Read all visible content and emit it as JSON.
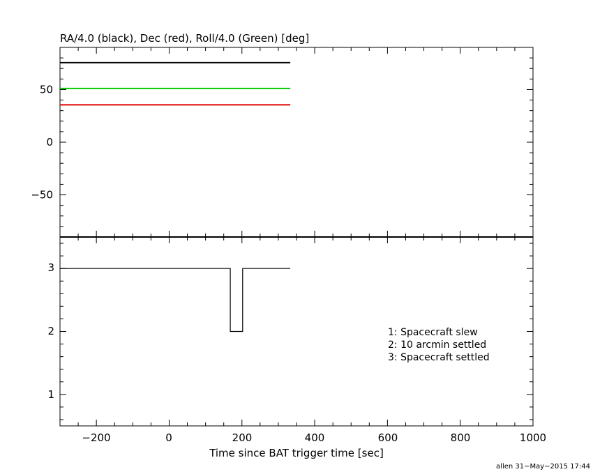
{
  "chart_data": [
    {
      "type": "line",
      "title": "RA/4.0 (black), Dec (red), Roll/4.0 (Green) [deg]",
      "xlim": [
        -300,
        1000
      ],
      "ylim": [
        -90,
        90
      ],
      "yticks": [
        50,
        0,
        -50
      ],
      "series": [
        {
          "color": "#000000",
          "x": [
            -300,
            333
          ],
          "y": [
            75.5,
            75.5
          ]
        },
        {
          "color": "#00cc00",
          "x": [
            -300,
            333
          ],
          "y": [
            51,
            51
          ]
        },
        {
          "color": "#e00000",
          "x": [
            -300,
            333
          ],
          "y": [
            35.5,
            35.5
          ]
        }
      ]
    },
    {
      "type": "line",
      "xlabel": "Time since BAT trigger time [sec]",
      "xlim": [
        -300,
        1000
      ],
      "ylim": [
        0.5,
        3.5
      ],
      "yticks": [
        "3",
        "2",
        "1"
      ],
      "xticks": [
        "−200",
        "0",
        "200",
        "400",
        "600",
        "800",
        "1000"
      ],
      "series": [
        {
          "color": "#000000",
          "x": [
            -300,
            168,
            168,
            202,
            202,
            333
          ],
          "y": [
            3,
            3,
            2,
            2,
            3,
            3
          ]
        }
      ],
      "annotations": [
        "1: Spacecraft slew",
        "2: 10 arcmin settled",
        "3: Spacecraft settled"
      ]
    }
  ],
  "footer": "allen 31−May−2015 17:44"
}
